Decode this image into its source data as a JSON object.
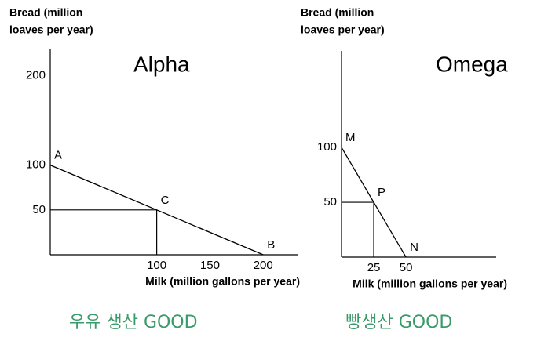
{
  "chart_data": [
    {
      "type": "line",
      "title": "Alpha",
      "y_label": [
        "Bread (million",
        "loaves per year)"
      ],
      "x_label": "Milk (million gallons per year)",
      "x": [
        0,
        100,
        200
      ],
      "values": [
        100,
        50,
        0
      ],
      "point_labels": [
        "A",
        "C",
        "B"
      ],
      "color": "#000000",
      "drop_lines": true,
      "xlim": [
        0,
        233
      ],
      "ylim": [
        0,
        230
      ],
      "xticks": [
        100,
        150,
        200
      ],
      "yticks": [
        50,
        100,
        200
      ],
      "annotation": "우유 생산 GOOD"
    },
    {
      "type": "line",
      "title": "Omega",
      "y_label": [
        "Bread (million",
        "loaves per year)"
      ],
      "x_label": "Milk (million gallons per year)",
      "x": [
        0,
        25,
        50
      ],
      "values": [
        100,
        50,
        0
      ],
      "point_labels": [
        "M",
        "P",
        "N"
      ],
      "color": "#000000",
      "drop_lines": true,
      "xlim": [
        0,
        120
      ],
      "ylim": [
        0,
        188
      ],
      "xticks": [
        25,
        50
      ],
      "yticks": [
        50,
        100
      ],
      "annotation": "빵생산 GOOD"
    }
  ]
}
